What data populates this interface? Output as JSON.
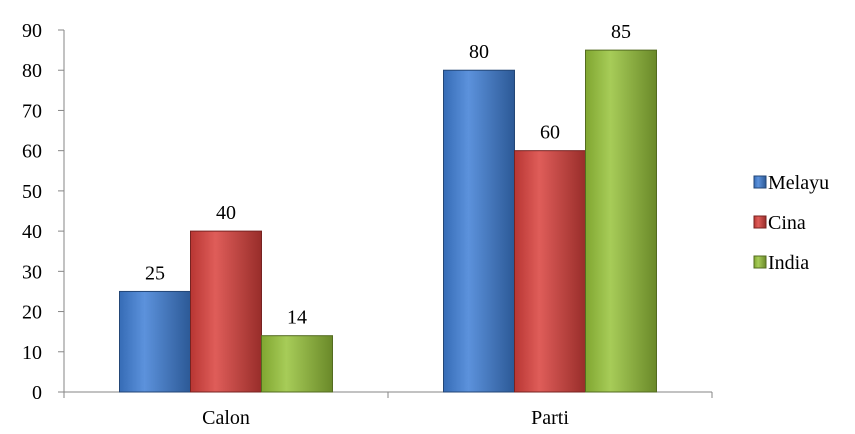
{
  "chart_data": {
    "type": "bar",
    "categories": [
      "Calon",
      "Parti"
    ],
    "series": [
      {
        "name": "Melayu",
        "values": [
          25,
          80
        ],
        "color": "#3f7fd6"
      },
      {
        "name": "Cina",
        "values": [
          40,
          60
        ],
        "color": "#d9403c"
      },
      {
        "name": "India",
        "values": [
          14,
          85
        ],
        "color": "#97c33a"
      }
    ],
    "ylim": [
      0,
      90
    ],
    "yticks": [
      0,
      10,
      20,
      30,
      40,
      50,
      60,
      70,
      80,
      90
    ],
    "grid": false,
    "legend": "right",
    "data_labels": true
  }
}
